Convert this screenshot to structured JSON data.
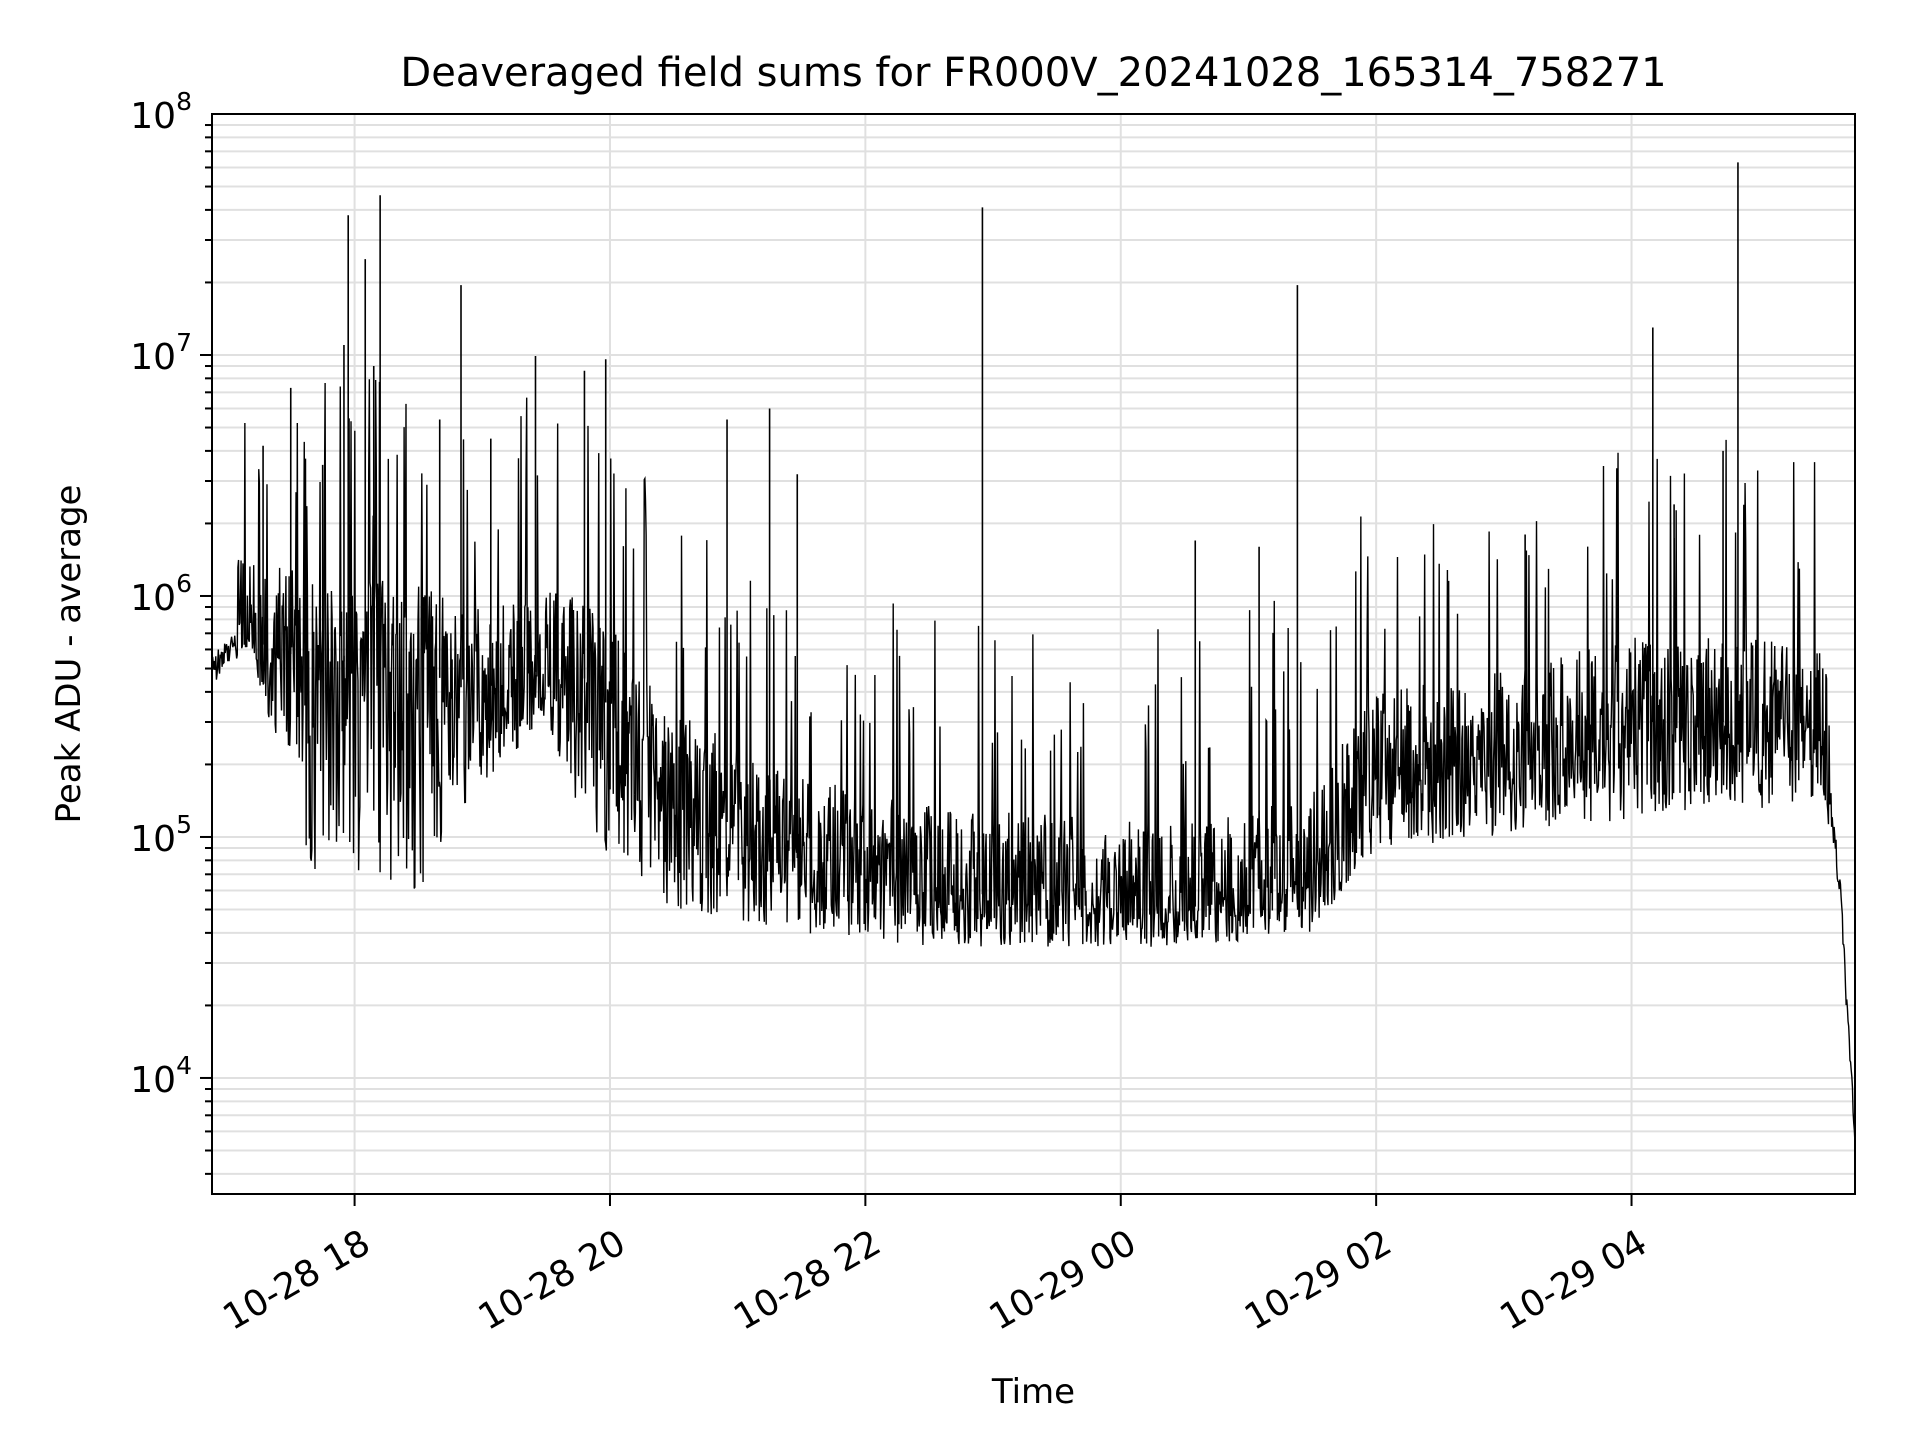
{
  "chart_data": {
    "type": "line",
    "title": "Deaveraged field sums for FR000V_20241028_165314_758271",
    "xlabel": "Time",
    "ylabel": "Peak ADU - average",
    "yscale": "log",
    "ylim": [
      3300,
      100000000
    ],
    "xlim": [
      "2024-10-28T16:53",
      "2024-10-29T05:45"
    ],
    "grid": true,
    "line_color": "#000000",
    "grid_color": "#e0e0e0",
    "x_ticks": [
      {
        "t": "2024-10-28T18:00",
        "label": "10-28 18"
      },
      {
        "t": "2024-10-28T20:00",
        "label": "10-28 20"
      },
      {
        "t": "2024-10-28T22:00",
        "label": "10-28 22"
      },
      {
        "t": "2024-10-29T00:00",
        "label": "10-29 00"
      },
      {
        "t": "2024-10-29T02:00",
        "label": "10-29 02"
      },
      {
        "t": "2024-10-29T04:00",
        "label": "10-29 04"
      }
    ],
    "y_ticks": [
      {
        "v": 10000,
        "label": "10",
        "exp": "4"
      },
      {
        "v": 100000,
        "label": "10",
        "exp": "5"
      },
      {
        "v": 1000000,
        "label": "10",
        "exp": "6"
      },
      {
        "v": 10000000,
        "label": "10",
        "exp": "7"
      },
      {
        "v": 100000000,
        "label": "10",
        "exp": "8"
      }
    ],
    "series": [
      {
        "baseline_envelope": [
          {
            "t": "2024-10-28T16:53",
            "base": 500000,
            "low": 480000
          },
          {
            "t": "2024-10-28T17:10",
            "base": 700000,
            "low": 600000
          },
          {
            "t": "2024-10-28T17:20",
            "base": 600000,
            "low": 300000
          },
          {
            "t": "2024-10-28T17:40",
            "base": 550000,
            "low": 70000
          },
          {
            "t": "2024-10-28T18:30",
            "base": 500000,
            "low": 60000
          },
          {
            "t": "2024-10-28T18:55",
            "base": 400000,
            "low": 150000
          },
          {
            "t": "2024-10-28T19:30",
            "base": 500000,
            "low": 300000
          },
          {
            "t": "2024-10-28T19:50",
            "base": 450000,
            "low": 100000
          },
          {
            "t": "2024-10-28T20:30",
            "base": 150000,
            "low": 50000
          },
          {
            "t": "2024-10-28T21:30",
            "base": 80000,
            "low": 40000
          },
          {
            "t": "2024-10-28T22:30",
            "base": 60000,
            "low": 35000
          },
          {
            "t": "2024-10-28T23:30",
            "base": 55000,
            "low": 35000
          },
          {
            "t": "2024-10-29T00:30",
            "base": 50000,
            "low": 35000
          },
          {
            "t": "2024-10-29T01:30",
            "base": 70000,
            "low": 40000
          },
          {
            "t": "2024-10-29T02:00",
            "base": 180000,
            "low": 90000
          },
          {
            "t": "2024-10-29T03:00",
            "base": 220000,
            "low": 100000
          },
          {
            "t": "2024-10-29T04:00",
            "base": 300000,
            "low": 120000
          },
          {
            "t": "2024-10-29T05:00",
            "base": 300000,
            "low": 130000
          },
          {
            "t": "2024-10-29T05:30",
            "base": 280000,
            "low": 150000
          },
          {
            "t": "2024-10-29T05:38",
            "base": 60000,
            "low": 40000
          },
          {
            "t": "2024-10-29T05:45",
            "base": 5500,
            "low": 5200
          }
        ],
        "peaks": [
          {
            "t": "2024-10-28T17:17",
            "y": 4200000
          },
          {
            "t": "2024-10-28T17:30",
            "y": 7300000
          },
          {
            "t": "2024-10-28T17:45",
            "y": 3500000
          },
          {
            "t": "2024-10-28T17:55",
            "y": 11000000
          },
          {
            "t": "2024-10-28T17:57",
            "y": 38000000
          },
          {
            "t": "2024-10-28T18:05",
            "y": 25000000
          },
          {
            "t": "2024-10-28T18:09",
            "y": 9000000
          },
          {
            "t": "2024-10-28T18:12",
            "y": 46000000
          },
          {
            "t": "2024-10-28T18:40",
            "y": 5400000
          },
          {
            "t": "2024-10-28T18:50",
            "y": 19500000
          },
          {
            "t": "2024-10-28T19:04",
            "y": 4500000
          },
          {
            "t": "2024-10-28T19:25",
            "y": 9900000
          },
          {
            "t": "2024-10-28T19:48",
            "y": 8600000
          },
          {
            "t": "2024-10-28T19:58",
            "y": 9600000
          },
          {
            "t": "2024-10-28T20:55",
            "y": 5400000
          },
          {
            "t": "2024-10-28T21:15",
            "y": 6000000
          },
          {
            "t": "2024-10-28T21:28",
            "y": 3200000
          },
          {
            "t": "2024-10-28T22:55",
            "y": 41000000
          },
          {
            "t": "2024-10-29T00:35",
            "y": 1700000
          },
          {
            "t": "2024-10-29T01:05",
            "y": 1600000
          },
          {
            "t": "2024-10-29T01:23",
            "y": 19500000
          },
          {
            "t": "2024-10-29T03:10",
            "y": 1800000
          },
          {
            "t": "2024-10-29T04:10",
            "y": 13000000
          },
          {
            "t": "2024-10-29T04:20",
            "y": 2400000
          },
          {
            "t": "2024-10-29T04:43",
            "y": 4000000
          },
          {
            "t": "2024-10-29T04:50",
            "y": 63000000
          }
        ]
      }
    ]
  }
}
